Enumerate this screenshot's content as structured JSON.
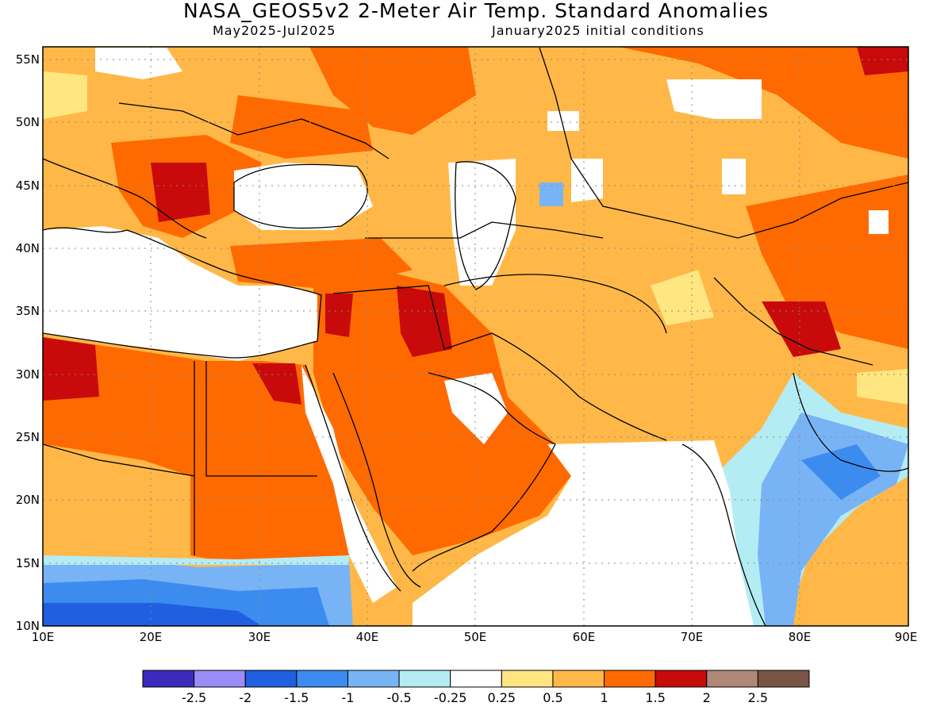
{
  "title": "NASA_GEOS5v2 2-Meter Air Temp. Standard Anomalies",
  "subtitle_left": "May2025-Jul2025",
  "subtitle_right": "January2025 initial conditions",
  "map": {
    "lon_range": [
      10,
      90
    ],
    "lat_range": [
      10,
      56
    ],
    "lon_ticks": [
      "10E",
      "20E",
      "30E",
      "40E",
      "50E",
      "60E",
      "70E",
      "80E",
      "90E"
    ],
    "lat_ticks": [
      "55N",
      "50N",
      "45N",
      "40N",
      "35N",
      "30N",
      "25N",
      "20N",
      "15N",
      "10N"
    ],
    "grid": "dotted"
  },
  "colorbar": {
    "colors": [
      "#3a2bbd",
      "#9b8cf8",
      "#1f5fe0",
      "#3c8cf0",
      "#78b4f5",
      "#b4ecf4",
      "#ffffff",
      "#ffe680",
      "#ffb847",
      "#ff6a00",
      "#c80a0a",
      "#b08878",
      "#7a5444"
    ],
    "labels": [
      "-2.5",
      "-2",
      "-1.5",
      "-1",
      "-0.5",
      "-0.25",
      "0.25",
      "0.5",
      "1",
      "1.5",
      "2",
      "2.5"
    ]
  }
}
